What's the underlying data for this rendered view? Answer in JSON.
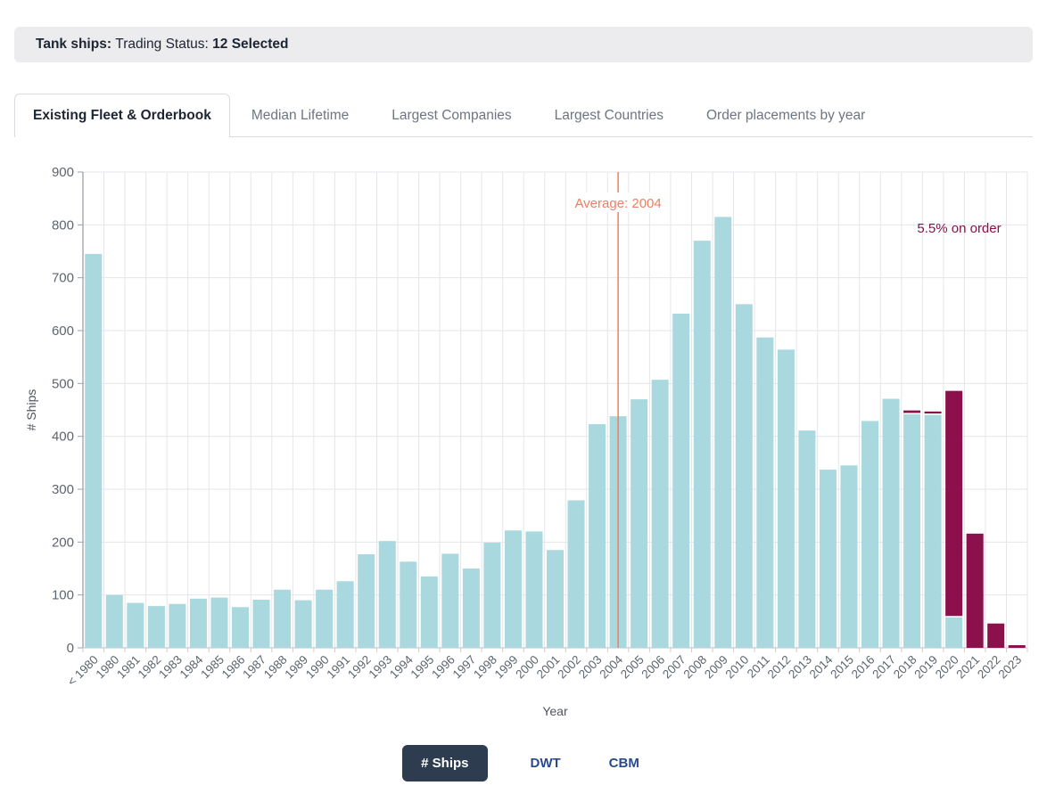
{
  "header": {
    "prefix": "Tank ships:",
    "label": "Trading Status:",
    "value": "12 Selected"
  },
  "tabs": [
    {
      "label": "Existing Fleet & Orderbook",
      "active": true
    },
    {
      "label": "Median Lifetime",
      "active": false
    },
    {
      "label": "Largest Companies",
      "active": false
    },
    {
      "label": "Largest Countries",
      "active": false
    },
    {
      "label": "Order placements by year",
      "active": false
    }
  ],
  "chart_data": {
    "type": "bar",
    "stacked": true,
    "xlabel": "Year",
    "ylabel": "# Ships",
    "ylim": [
      0,
      900
    ],
    "ytick_step": 100,
    "grid": true,
    "legend": "none",
    "categories": [
      "< 1980",
      "1980",
      "1981",
      "1982",
      "1983",
      "1984",
      "1985",
      "1986",
      "1987",
      "1988",
      "1989",
      "1990",
      "1991",
      "1992",
      "1993",
      "1994",
      "1995",
      "1996",
      "1997",
      "1998",
      "1999",
      "2000",
      "2001",
      "2002",
      "2003",
      "2004",
      "2005",
      "2006",
      "2007",
      "2008",
      "2009",
      "2010",
      "2011",
      "2012",
      "2013",
      "2014",
      "2015",
      "2016",
      "2017",
      "2018",
      "2019",
      "2020",
      "2021",
      "2022",
      "2023"
    ],
    "series": [
      {
        "name": "Existing fleet",
        "color": "#a9d8de",
        "values": [
          745,
          100,
          85,
          79,
          83,
          93,
          95,
          77,
          91,
          110,
          90,
          110,
          126,
          177,
          202,
          163,
          135,
          178,
          150,
          199,
          222,
          220,
          185,
          279,
          423,
          438,
          470,
          507,
          632,
          770,
          815,
          650,
          587,
          564,
          411,
          337,
          345,
          429,
          471,
          443,
          442,
          59,
          0,
          0,
          0
        ]
      },
      {
        "name": "On order",
        "color": "#8c104b",
        "values": [
          0,
          0,
          0,
          0,
          0,
          0,
          0,
          0,
          0,
          0,
          0,
          0,
          0,
          0,
          0,
          0,
          0,
          0,
          0,
          0,
          0,
          0,
          0,
          0,
          0,
          0,
          0,
          0,
          0,
          0,
          0,
          0,
          0,
          0,
          0,
          0,
          0,
          0,
          0,
          6,
          5,
          427,
          216,
          46,
          5
        ]
      }
    ],
    "annotations": {
      "average_line": {
        "category": "2004",
        "label": "Average: 2004",
        "color": "#ee7f5f"
      },
      "on_order_label": {
        "text": "5.5% on order",
        "color": "#8c104b",
        "anchor_category": "2020"
      }
    }
  },
  "controls": [
    {
      "label": "# Ships",
      "active": true
    },
    {
      "label": "DWT",
      "active": false
    },
    {
      "label": "CBM",
      "active": false
    }
  ]
}
